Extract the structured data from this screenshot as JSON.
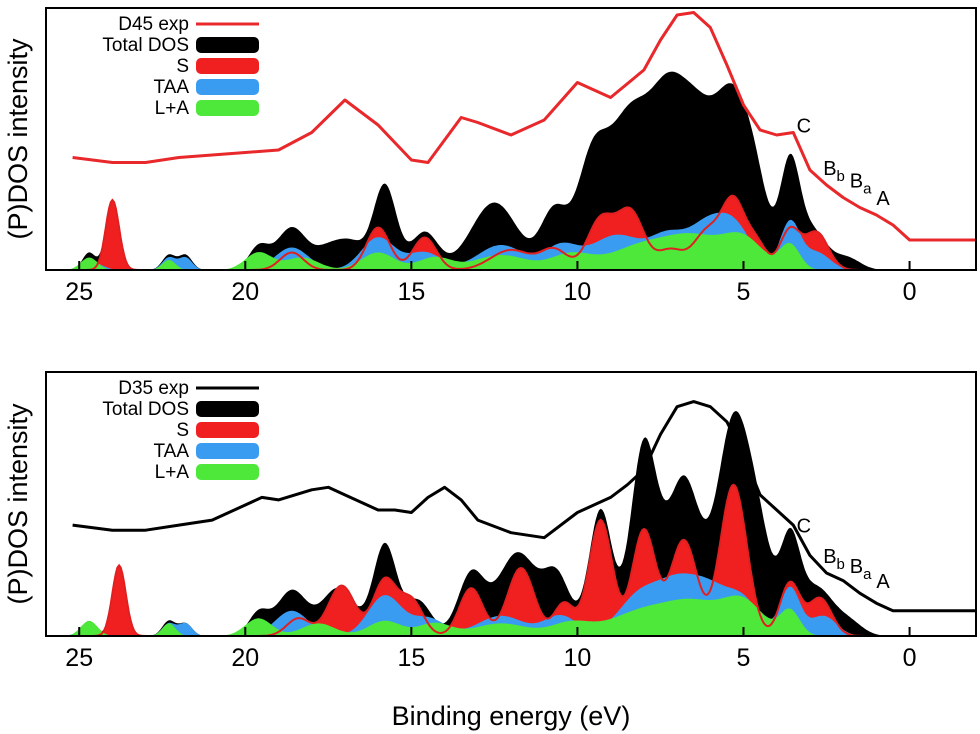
{
  "figure": {
    "xlabel": "Binding energy (eV)",
    "ylabel": "(P)DOS intensity",
    "colors": {
      "total": "#000000",
      "s": "#f02020",
      "taa": "#3a9cf0",
      "la": "#4ee83a",
      "exp_top": "#e8282a",
      "exp_bottom": "#000000"
    }
  },
  "chart_data": [
    {
      "type": "area",
      "panel": "top",
      "xlabel": "",
      "ylabel": "(P)DOS intensity",
      "xlim": [
        26,
        -2
      ],
      "xticks": [
        25,
        20,
        15,
        10,
        5,
        0
      ],
      "legend": [
        "D45 exp",
        "Total DOS",
        "S",
        "TAA",
        "L+A"
      ],
      "legend_position": "top-left",
      "annotations": [
        {
          "text": "C",
          "x": 3.4,
          "y": 0.55
        },
        {
          "text": "B",
          "sub": "b",
          "x": 2.6,
          "y": 0.38
        },
        {
          "text": "B",
          "sub": "a",
          "x": 1.8,
          "y": 0.33
        },
        {
          "text": "A",
          "x": 1.0,
          "y": 0.26
        }
      ],
      "series": [
        {
          "name": "D45 exp",
          "color_key": "exp_top",
          "style": "line",
          "x": [
            25.2,
            24,
            23,
            22,
            21,
            20,
            19,
            18,
            17,
            16,
            15,
            14.5,
            14,
            13.5,
            13,
            12,
            11,
            10,
            9,
            8,
            7.5,
            7,
            6.5,
            6,
            5.5,
            5,
            4.5,
            4,
            3.5,
            3,
            2.5,
            2,
            1.5,
            1,
            0.5,
            0,
            -1,
            -2
          ],
          "y": [
            0.45,
            0.43,
            0.43,
            0.45,
            0.46,
            0.47,
            0.48,
            0.55,
            0.68,
            0.58,
            0.44,
            0.43,
            0.52,
            0.61,
            0.59,
            0.54,
            0.6,
            0.75,
            0.69,
            0.8,
            0.92,
            1.02,
            1.03,
            0.97,
            0.82,
            0.66,
            0.56,
            0.54,
            0.55,
            0.4,
            0.34,
            0.29,
            0.25,
            0.22,
            0.18,
            0.12,
            0.12,
            0.12
          ]
        },
        {
          "name": "Total DOS",
          "color_key": "total",
          "style": "area",
          "peaks": [
            [
              24.7,
              0.07,
              0.2
            ],
            [
              24,
              0.28,
              0.2
            ],
            [
              22.3,
              0.06,
              0.2
            ],
            [
              21.8,
              0.06,
              0.2
            ],
            [
              19.6,
              0.09,
              0.3
            ],
            [
              18.6,
              0.17,
              0.45
            ],
            [
              17.5,
              0.08,
              0.4
            ],
            [
              16.8,
              0.1,
              0.4
            ],
            [
              15.8,
              0.34,
              0.35
            ],
            [
              14.6,
              0.15,
              0.4
            ],
            [
              12.5,
              0.27,
              0.7
            ],
            [
              10.7,
              0.23,
              0.4
            ],
            [
              9.6,
              0.36,
              0.45
            ],
            [
              8.4,
              0.62,
              0.7
            ],
            [
              7.3,
              0.42,
              0.5
            ],
            [
              6.4,
              0.58,
              0.6
            ],
            [
              5.3,
              0.58,
              0.5
            ],
            [
              4.6,
              0.25,
              0.4
            ],
            [
              3.6,
              0.42,
              0.3
            ],
            [
              2.9,
              0.15,
              0.4
            ],
            [
              1.9,
              0.05,
              0.4
            ]
          ]
        },
        {
          "name": "S",
          "color_key": "s",
          "style": "area",
          "peaks": [
            [
              24,
              0.28,
              0.2
            ],
            [
              18.6,
              0.07,
              0.35
            ],
            [
              16.0,
              0.17,
              0.35
            ],
            [
              14.6,
              0.13,
              0.35
            ],
            [
              12.0,
              0.08,
              0.6
            ],
            [
              10.7,
              0.08,
              0.4
            ],
            [
              9.3,
              0.2,
              0.4
            ],
            [
              8.4,
              0.23,
              0.4
            ],
            [
              7.2,
              0.08,
              0.4
            ],
            [
              6.1,
              0.15,
              0.4
            ],
            [
              5.3,
              0.27,
              0.35
            ],
            [
              4.6,
              0.1,
              0.3
            ],
            [
              3.6,
              0.16,
              0.3
            ],
            [
              2.8,
              0.15,
              0.35
            ]
          ]
        },
        {
          "name": "TAA",
          "color_key": "taa",
          "style": "area",
          "peaks": [
            [
              24.6,
              0.03,
              0.3
            ],
            [
              22.3,
              0.05,
              0.2
            ],
            [
              21.8,
              0.05,
              0.2
            ],
            [
              18.6,
              0.09,
              0.5
            ],
            [
              16.0,
              0.13,
              0.5
            ],
            [
              14.6,
              0.07,
              0.5
            ],
            [
              12.3,
              0.1,
              0.7
            ],
            [
              10.5,
              0.09,
              0.5
            ],
            [
              8.8,
              0.14,
              0.8
            ],
            [
              7.3,
              0.11,
              0.5
            ],
            [
              6.1,
              0.18,
              0.6
            ],
            [
              5.2,
              0.14,
              0.5
            ],
            [
              3.6,
              0.19,
              0.3
            ],
            [
              2.8,
              0.07,
              0.4
            ]
          ]
        },
        {
          "name": "L+A",
          "color_key": "la",
          "style": "area",
          "peaks": [
            [
              24.7,
              0.05,
              0.25
            ],
            [
              22.3,
              0.04,
              0.2
            ],
            [
              19.6,
              0.07,
              0.4
            ],
            [
              18.3,
              0.05,
              0.5
            ],
            [
              16.0,
              0.07,
              0.5
            ],
            [
              14.3,
              0.05,
              0.5
            ],
            [
              12.3,
              0.06,
              0.8
            ],
            [
              10.2,
              0.06,
              0.6
            ],
            [
              8.0,
              0.1,
              1.0
            ],
            [
              6.4,
              0.11,
              0.8
            ],
            [
              5.0,
              0.12,
              0.6
            ],
            [
              3.6,
              0.1,
              0.3
            ]
          ]
        }
      ]
    },
    {
      "type": "area",
      "panel": "bottom",
      "xlabel": "Binding energy (eV)",
      "ylabel": "(P)DOS intensity",
      "xlim": [
        26,
        -2
      ],
      "xticks": [
        25,
        20,
        15,
        10,
        5,
        0
      ],
      "legend": [
        "D35 exp",
        "Total DOS",
        "S",
        "TAA",
        "L+A"
      ],
      "legend_position": "top-left",
      "annotations": [
        {
          "text": "C",
          "x": 3.4,
          "y": 0.41
        },
        {
          "text": "B",
          "sub": "b",
          "x": 2.6,
          "y": 0.29
        },
        {
          "text": "B",
          "sub": "a",
          "x": 1.8,
          "y": 0.25
        },
        {
          "text": "A",
          "x": 1.0,
          "y": 0.19
        }
      ],
      "series": [
        {
          "name": "D35 exp",
          "color_key": "exp_bottom",
          "style": "line",
          "x": [
            25.2,
            24,
            23,
            22,
            21,
            20,
            19.5,
            19,
            18,
            17.5,
            17,
            16,
            15.5,
            15,
            14.5,
            14,
            13.5,
            13,
            12,
            11,
            10,
            9,
            8.5,
            8,
            7.5,
            7,
            6.5,
            6,
            5.5,
            5,
            4.5,
            4,
            3.5,
            3,
            2.5,
            2,
            1.5,
            1,
            0.5,
            0,
            -1,
            -2
          ],
          "y": [
            0.44,
            0.42,
            0.42,
            0.44,
            0.46,
            0.52,
            0.55,
            0.54,
            0.58,
            0.59,
            0.56,
            0.5,
            0.5,
            0.49,
            0.55,
            0.59,
            0.54,
            0.46,
            0.41,
            0.39,
            0.49,
            0.55,
            0.6,
            0.66,
            0.8,
            0.91,
            0.93,
            0.91,
            0.85,
            0.72,
            0.56,
            0.5,
            0.44,
            0.32,
            0.25,
            0.22,
            0.17,
            0.13,
            0.1,
            0.1,
            0.1,
            0.1
          ]
        },
        {
          "name": "Total DOS",
          "color_key": "total",
          "style": "area",
          "peaks": [
            [
              24.7,
              0.06,
              0.2
            ],
            [
              23.8,
              0.28,
              0.2
            ],
            [
              22.3,
              0.06,
              0.2
            ],
            [
              21.8,
              0.05,
              0.2
            ],
            [
              19.6,
              0.09,
              0.3
            ],
            [
              18.6,
              0.18,
              0.45
            ],
            [
              17.2,
              0.19,
              0.5
            ],
            [
              15.8,
              0.36,
              0.35
            ],
            [
              14.8,
              0.14,
              0.4
            ],
            [
              13.2,
              0.24,
              0.4
            ],
            [
              11.8,
              0.33,
              0.6
            ],
            [
              10.6,
              0.22,
              0.4
            ],
            [
              9.3,
              0.5,
              0.35
            ],
            [
              8.0,
              0.75,
              0.4
            ],
            [
              6.8,
              0.62,
              0.5
            ],
            [
              5.3,
              0.84,
              0.5
            ],
            [
              4.5,
              0.3,
              0.4
            ],
            [
              3.6,
              0.35,
              0.3
            ],
            [
              2.8,
              0.19,
              0.5
            ],
            [
              1.8,
              0.05,
              0.4
            ]
          ]
        },
        {
          "name": "S",
          "color_key": "s",
          "style": "area",
          "peaks": [
            [
              23.8,
              0.28,
              0.2
            ],
            [
              18.4,
              0.07,
              0.35
            ],
            [
              17.1,
              0.2,
              0.4
            ],
            [
              15.8,
              0.22,
              0.35
            ],
            [
              15.0,
              0.14,
              0.35
            ],
            [
              13.2,
              0.19,
              0.35
            ],
            [
              11.7,
              0.27,
              0.4
            ],
            [
              10.4,
              0.13,
              0.3
            ],
            [
              9.3,
              0.46,
              0.35
            ],
            [
              8.0,
              0.42,
              0.35
            ],
            [
              6.8,
              0.38,
              0.4
            ],
            [
              5.3,
              0.6,
              0.4
            ],
            [
              3.6,
              0.21,
              0.3
            ],
            [
              2.7,
              0.15,
              0.35
            ]
          ]
        },
        {
          "name": "TAA",
          "color_key": "taa",
          "style": "area",
          "peaks": [
            [
              24.7,
              0.03,
              0.3
            ],
            [
              22.3,
              0.05,
              0.2
            ],
            [
              21.8,
              0.05,
              0.2
            ],
            [
              18.6,
              0.1,
              0.5
            ],
            [
              15.8,
              0.16,
              0.5
            ],
            [
              14.5,
              0.07,
              0.5
            ],
            [
              12.3,
              0.08,
              0.7
            ],
            [
              10.5,
              0.08,
              0.5
            ],
            [
              8.0,
              0.18,
              0.7
            ],
            [
              7.0,
              0.12,
              0.5
            ],
            [
              6.1,
              0.19,
              0.6
            ],
            [
              5.0,
              0.13,
              0.5
            ],
            [
              3.6,
              0.19,
              0.3
            ],
            [
              2.6,
              0.08,
              0.4
            ]
          ]
        },
        {
          "name": "L+A",
          "color_key": "la",
          "style": "area",
          "peaks": [
            [
              24.7,
              0.06,
              0.25
            ],
            [
              22.3,
              0.05,
              0.2
            ],
            [
              19.6,
              0.07,
              0.4
            ],
            [
              17.8,
              0.05,
              0.5
            ],
            [
              15.8,
              0.06,
              0.5
            ],
            [
              14.3,
              0.05,
              0.5
            ],
            [
              12.3,
              0.05,
              0.8
            ],
            [
              10.2,
              0.05,
              0.6
            ],
            [
              8.0,
              0.1,
              1.0
            ],
            [
              6.4,
              0.11,
              0.8
            ],
            [
              5.0,
              0.13,
              0.6
            ],
            [
              3.6,
              0.1,
              0.3
            ]
          ]
        }
      ]
    }
  ]
}
